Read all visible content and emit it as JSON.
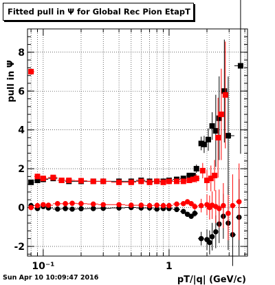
{
  "footer": {
    "datetime": "Sun Apr 10 10:09:47 2016"
  },
  "chart_data": {
    "type": "scatter",
    "title": "Fitted pull in  Ψ  for Global Rec Pion EtapT",
    "xlabel": "pT/|q| (GeV/c)",
    "ylabel": "pull in  Ψ",
    "x_scale": "log",
    "xlim": [
      0.075,
      4.2
    ],
    "ylim": [
      -2.5,
      9.2
    ],
    "grid": true,
    "x_ticks": [
      {
        "value": 0.1,
        "label": "10⁻¹"
      },
      {
        "value": 1,
        "label": "1"
      }
    ],
    "y_ticks": [
      -2,
      0,
      2,
      4,
      6,
      8
    ],
    "series": [
      {
        "color": "#000000",
        "marker": "circle",
        "points": [
          [
            0.08,
            0.1
          ],
          [
            0.09,
            -0.05
          ],
          [
            0.1,
            0.05
          ],
          [
            0.11,
            -0.02
          ],
          [
            0.13,
            -0.08
          ],
          [
            0.15,
            -0.05
          ],
          [
            0.17,
            -0.08
          ],
          [
            0.2,
            -0.06
          ],
          [
            0.25,
            -0.05
          ],
          [
            0.3,
            -0.04
          ],
          [
            0.4,
            -0.02
          ],
          [
            0.5,
            0.0
          ],
          [
            0.6,
            -0.02
          ],
          [
            0.7,
            -0.02
          ],
          [
            0.8,
            -0.08
          ],
          [
            0.9,
            -0.05
          ],
          [
            1.0,
            -0.05
          ],
          [
            1.15,
            -0.1
          ],
          [
            1.3,
            -0.2
          ],
          [
            1.4,
            -0.35
          ],
          [
            1.5,
            -0.45
          ],
          [
            1.6,
            -0.3
          ],
          [
            1.8,
            -1.6
          ],
          [
            2.0,
            -1.65
          ],
          [
            2.1,
            -1.8
          ],
          [
            2.2,
            -1.5
          ],
          [
            2.35,
            -1.25
          ],
          [
            2.5,
            -0.85
          ],
          [
            2.7,
            -0.45
          ],
          [
            2.95,
            -0.8
          ],
          [
            3.2,
            -1.4
          ],
          [
            3.6,
            -0.5
          ]
        ]
      },
      {
        "color": "#ff0000",
        "marker": "circle",
        "points": [
          [
            0.08,
            0.0
          ],
          [
            0.09,
            0.1
          ],
          [
            0.1,
            0.15
          ],
          [
            0.11,
            0.12
          ],
          [
            0.13,
            0.2
          ],
          [
            0.15,
            0.2
          ],
          [
            0.17,
            0.22
          ],
          [
            0.2,
            0.2
          ],
          [
            0.25,
            0.18
          ],
          [
            0.3,
            0.15
          ],
          [
            0.4,
            0.15
          ],
          [
            0.5,
            0.12
          ],
          [
            0.6,
            0.12
          ],
          [
            0.7,
            0.1
          ],
          [
            0.8,
            0.12
          ],
          [
            0.9,
            0.1
          ],
          [
            1.0,
            0.1
          ],
          [
            1.15,
            0.18
          ],
          [
            1.3,
            0.2
          ],
          [
            1.4,
            0.3
          ],
          [
            1.5,
            0.2
          ],
          [
            1.6,
            0.05
          ],
          [
            1.8,
            0.1
          ],
          [
            2.0,
            0.15
          ],
          [
            2.1,
            0.0
          ],
          [
            2.2,
            0.12
          ],
          [
            2.35,
            0.05
          ],
          [
            2.5,
            -0.05
          ],
          [
            2.7,
            0.1
          ],
          [
            2.95,
            -0.3
          ],
          [
            3.2,
            0.1
          ],
          [
            3.6,
            0.3
          ]
        ]
      },
      {
        "color": "#000000",
        "marker": "square",
        "points": [
          [
            0.08,
            1.3
          ],
          [
            0.09,
            1.4
          ],
          [
            0.1,
            1.45
          ],
          [
            0.12,
            1.5
          ],
          [
            0.14,
            1.4
          ],
          [
            0.16,
            1.35
          ],
          [
            0.2,
            1.35
          ],
          [
            0.25,
            1.35
          ],
          [
            0.3,
            1.35
          ],
          [
            0.4,
            1.35
          ],
          [
            0.5,
            1.35
          ],
          [
            0.6,
            1.4
          ],
          [
            0.7,
            1.35
          ],
          [
            0.8,
            1.35
          ],
          [
            0.9,
            1.35
          ],
          [
            1.0,
            1.4
          ],
          [
            1.15,
            1.45
          ],
          [
            1.3,
            1.5
          ],
          [
            1.45,
            1.65
          ],
          [
            1.55,
            1.65
          ],
          [
            1.65,
            2.0
          ],
          [
            1.8,
            3.3
          ],
          [
            1.9,
            3.25
          ],
          [
            2.05,
            3.5
          ],
          [
            2.2,
            4.2
          ],
          [
            2.35,
            3.95
          ],
          [
            2.5,
            4.6
          ],
          [
            2.75,
            6.0
          ],
          [
            2.95,
            3.7
          ],
          [
            3.7,
            7.3
          ]
        ]
      },
      {
        "color": "#ff0000",
        "marker": "square",
        "points": [
          [
            0.08,
            7.0
          ],
          [
            0.09,
            1.6
          ],
          [
            0.1,
            1.5
          ],
          [
            0.12,
            1.55
          ],
          [
            0.14,
            1.4
          ],
          [
            0.16,
            1.4
          ],
          [
            0.2,
            1.38
          ],
          [
            0.25,
            1.35
          ],
          [
            0.3,
            1.35
          ],
          [
            0.4,
            1.3
          ],
          [
            0.5,
            1.3
          ],
          [
            0.6,
            1.35
          ],
          [
            0.7,
            1.3
          ],
          [
            0.8,
            1.35
          ],
          [
            0.9,
            1.3
          ],
          [
            1.0,
            1.35
          ],
          [
            1.15,
            1.35
          ],
          [
            1.3,
            1.35
          ],
          [
            1.45,
            1.4
          ],
          [
            1.55,
            1.45
          ],
          [
            1.65,
            1.5
          ],
          [
            1.85,
            1.9
          ],
          [
            2.0,
            1.4
          ],
          [
            2.15,
            1.5
          ],
          [
            2.3,
            1.65
          ],
          [
            2.45,
            3.6
          ],
          [
            2.6,
            4.8
          ],
          [
            2.8,
            5.8
          ]
        ]
      }
    ]
  }
}
